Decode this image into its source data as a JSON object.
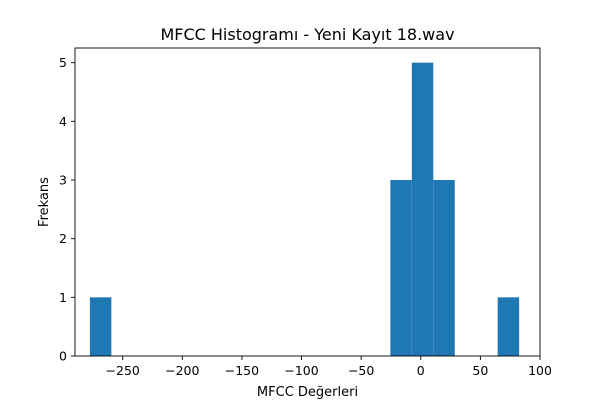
{
  "chart_data": {
    "type": "bar",
    "title": "MFCC Histogramı - Yeni Kayıt 18.wav",
    "xlabel": "MFCC Değerleri",
    "ylabel": "Frekans",
    "xlim": [
      -290,
      100
    ],
    "ylim": [
      0,
      5.25
    ],
    "bin_edges": [
      -277.5,
      -259.5,
      -241.5,
      -223.5,
      -205.5,
      -187.5,
      -169.5,
      -151.5,
      -133.5,
      -115.5,
      -97.5,
      -79.5,
      -61.5,
      -43.5,
      -25.5,
      -7.5,
      10.5,
      28.5,
      46.5,
      64.5,
      82.5
    ],
    "counts": [
      1,
      0,
      0,
      0,
      0,
      0,
      0,
      0,
      0,
      0,
      0,
      0,
      0,
      0,
      3,
      5,
      3,
      0,
      0,
      1
    ],
    "x_ticks": [
      -250,
      -200,
      -150,
      -100,
      -50,
      0,
      50,
      100
    ],
    "x_tick_labels": [
      "−250",
      "−200",
      "−150",
      "−100",
      "−50",
      "0",
      "50",
      "100"
    ],
    "y_ticks": [
      0,
      1,
      2,
      3,
      4,
      5
    ],
    "y_tick_labels": [
      "0",
      "1",
      "2",
      "3",
      "4",
      "5"
    ],
    "bar_color": "#1f77b4",
    "grid": false,
    "legend": "none"
  }
}
